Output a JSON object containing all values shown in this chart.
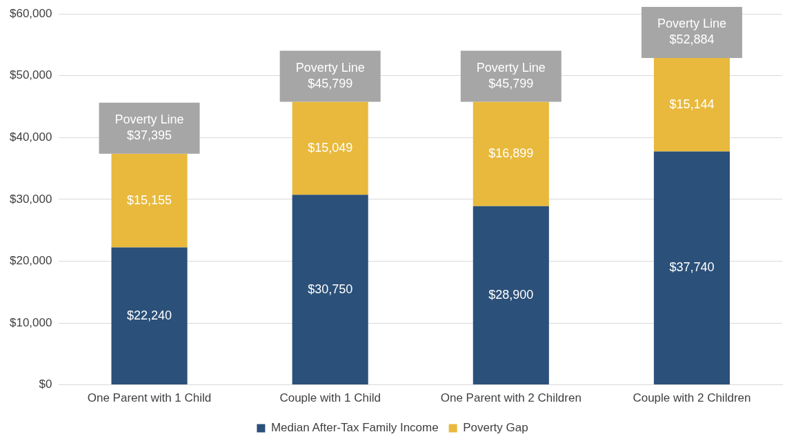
{
  "chart_data": {
    "type": "bar",
    "stacked": true,
    "categories": [
      "One Parent with 1 Child",
      "Couple with 1 Child",
      "One Parent with 2 Children",
      "Couple with 2 Children"
    ],
    "series": [
      {
        "name": "Median After-Tax Family Income",
        "color": "#2b5079",
        "values": [
          22240,
          30750,
          28900,
          37740
        ],
        "value_labels": [
          "$22,240",
          "$30,750",
          "$28,900",
          "$37,740"
        ]
      },
      {
        "name": "Poverty Gap",
        "color": "#e8b93c",
        "values": [
          15155,
          15049,
          16899,
          15144
        ],
        "value_labels": [
          "$15,155",
          "$15,049",
          "$16,899",
          "$15,144"
        ]
      }
    ],
    "ylim": [
      0,
      60000
    ],
    "yticks": [
      {
        "value": 0,
        "label": "$0"
      },
      {
        "value": 10000,
        "label": "$10,000"
      },
      {
        "value": 20000,
        "label": "$20,000"
      },
      {
        "value": 30000,
        "label": "$30,000"
      },
      {
        "value": 40000,
        "label": "$40,000"
      },
      {
        "value": 50000,
        "label": "$50,000"
      },
      {
        "value": 60000,
        "label": "$60,000"
      }
    ],
    "totals": [
      "Poverty Line\n$37,395",
      "Poverty Line\n$45,799",
      "Poverty Line\n$45,799",
      "Poverty Line\n$52,884"
    ],
    "grid": "y",
    "legend": "bottom"
  }
}
